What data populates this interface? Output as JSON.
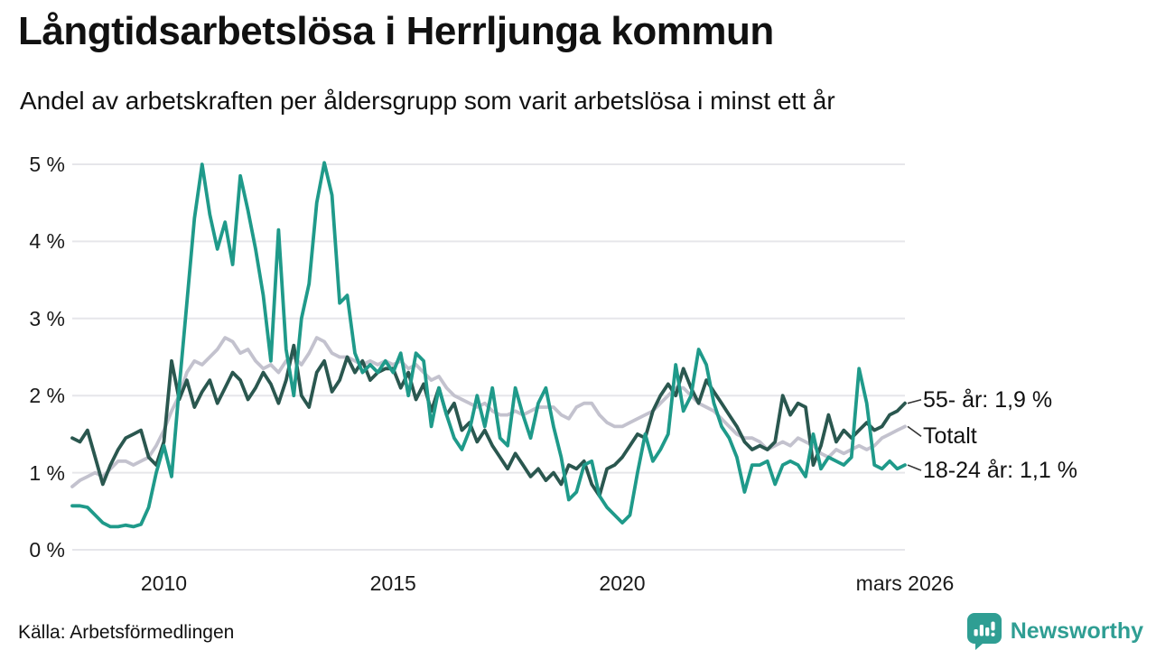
{
  "title": "Långtidsarbetslösa i Herrljunga kommun",
  "subtitle": "Andel av arbetskraften per åldersgrupp som varit arbetslösa i minst ett år",
  "source": "Källa: Arbetsförmedlingen",
  "branding": {
    "name": "Newsworthy",
    "icon": "speech-bubble-bar-chart-icon",
    "color": "#2f9e93"
  },
  "colors": {
    "grid": "#e6e6ea",
    "text": "#111111",
    "leader_line": "#333333"
  },
  "chart_data": {
    "type": "line",
    "title": "Långtidsarbetslösa i Herrljunga kommun",
    "xlabel": "",
    "ylabel": "Andel av arbetskraften (%)",
    "ylim": [
      0,
      5
    ],
    "grid": "horizontal",
    "legend_position": "right-end-labels",
    "x_start": 2008.0,
    "x_end": 2026.1667,
    "x_step_months": 2,
    "yticks": [
      {
        "v": 0,
        "label": "0 %"
      },
      {
        "v": 1,
        "label": "1 %"
      },
      {
        "v": 2,
        "label": "2 %"
      },
      {
        "v": 3,
        "label": "3 %"
      },
      {
        "v": 4,
        "label": "4 %"
      },
      {
        "v": 5,
        "label": "5 %"
      }
    ],
    "xticks": [
      {
        "v": 2010,
        "label": "2010"
      },
      {
        "v": 2015,
        "label": "2015"
      },
      {
        "v": 2020,
        "label": "2020"
      },
      {
        "v": 2026.1667,
        "label": "mars 2026"
      }
    ],
    "series": [
      {
        "name": "55- år",
        "end_label": "55- år: 1,9 %",
        "last_value": 1.9,
        "color": "#2a574f",
        "values": [
          1.45,
          1.4,
          1.55,
          1.2,
          0.85,
          1.1,
          1.3,
          1.45,
          1.5,
          1.55,
          1.2,
          1.1,
          1.4,
          2.45,
          1.95,
          2.2,
          1.85,
          2.05,
          2.2,
          1.9,
          2.1,
          2.3,
          2.2,
          1.95,
          2.1,
          2.3,
          2.15,
          1.9,
          2.2,
          2.65,
          2.0,
          1.85,
          2.3,
          2.45,
          2.05,
          2.2,
          2.5,
          2.3,
          2.45,
          2.2,
          2.3,
          2.35,
          2.35,
          2.1,
          2.3,
          1.95,
          2.15,
          1.8,
          2.1,
          1.75,
          1.9,
          1.55,
          1.65,
          1.4,
          1.55,
          1.35,
          1.2,
          1.05,
          1.25,
          1.1,
          0.95,
          1.05,
          0.9,
          1.0,
          0.85,
          1.1,
          1.05,
          1.15,
          0.85,
          0.7,
          1.05,
          1.1,
          1.2,
          1.35,
          1.5,
          1.45,
          1.8,
          2.0,
          2.15,
          2.0,
          2.35,
          2.1,
          1.9,
          2.2,
          2.05,
          1.9,
          1.75,
          1.6,
          1.4,
          1.3,
          1.35,
          1.3,
          1.4,
          2.0,
          1.75,
          1.9,
          1.85,
          1.1,
          1.35,
          1.75,
          1.4,
          1.55,
          1.45,
          1.55,
          1.65,
          1.55,
          1.6,
          1.75,
          1.8,
          1.9
        ]
      },
      {
        "name": "Totalt",
        "end_label": "Totalt",
        "last_value": 1.6,
        "color": "#c3c2ce",
        "values": [
          0.82,
          0.9,
          0.95,
          1.0,
          0.95,
          1.05,
          1.15,
          1.15,
          1.1,
          1.15,
          1.2,
          1.35,
          1.55,
          1.8,
          2.0,
          2.3,
          2.45,
          2.4,
          2.5,
          2.6,
          2.75,
          2.7,
          2.55,
          2.6,
          2.45,
          2.35,
          2.4,
          2.3,
          2.45,
          2.5,
          2.4,
          2.55,
          2.75,
          2.7,
          2.55,
          2.5,
          2.5,
          2.45,
          2.4,
          2.45,
          2.4,
          2.45,
          2.4,
          2.45,
          2.35,
          2.4,
          2.3,
          2.2,
          2.25,
          2.1,
          2.0,
          1.95,
          1.9,
          1.85,
          1.9,
          1.8,
          1.75,
          1.75,
          1.8,
          1.75,
          1.8,
          1.85,
          1.85,
          1.85,
          1.75,
          1.7,
          1.85,
          1.9,
          1.9,
          1.75,
          1.65,
          1.6,
          1.6,
          1.65,
          1.7,
          1.75,
          1.8,
          1.9,
          2.0,
          2.1,
          2.1,
          2.0,
          1.9,
          1.85,
          1.8,
          1.7,
          1.6,
          1.5,
          1.45,
          1.45,
          1.4,
          1.3,
          1.35,
          1.4,
          1.35,
          1.45,
          1.4,
          1.35,
          1.25,
          1.2,
          1.3,
          1.25,
          1.3,
          1.35,
          1.3,
          1.35,
          1.45,
          1.5,
          1.55,
          1.6
        ]
      },
      {
        "name": "18-24 år",
        "end_label": "18-24 år: 1,1 %",
        "last_value": 1.1,
        "color": "#1f9a8a",
        "values": [
          0.57,
          0.57,
          0.55,
          0.45,
          0.35,
          0.3,
          0.3,
          0.32,
          0.3,
          0.33,
          0.55,
          1.0,
          1.35,
          0.95,
          2.1,
          3.2,
          4.3,
          5.0,
          4.35,
          3.9,
          4.25,
          3.7,
          4.85,
          4.4,
          3.9,
          3.3,
          2.45,
          4.15,
          2.6,
          2.0,
          3.0,
          3.45,
          4.5,
          5.02,
          4.6,
          3.2,
          3.3,
          2.55,
          2.3,
          2.4,
          2.3,
          2.45,
          2.3,
          2.55,
          2.0,
          2.55,
          2.45,
          1.6,
          2.1,
          1.75,
          1.45,
          1.3,
          1.55,
          2.0,
          1.6,
          2.1,
          1.45,
          1.35,
          2.1,
          1.75,
          1.45,
          1.9,
          2.1,
          1.6,
          1.2,
          0.65,
          0.75,
          1.1,
          1.15,
          0.7,
          0.55,
          0.45,
          0.35,
          0.45,
          1.0,
          1.5,
          1.15,
          1.3,
          1.5,
          2.4,
          1.8,
          2.0,
          2.6,
          2.4,
          1.9,
          1.6,
          1.45,
          1.2,
          0.75,
          1.1,
          1.1,
          1.15,
          0.85,
          1.1,
          1.15,
          1.1,
          0.95,
          1.5,
          1.05,
          1.2,
          1.15,
          1.1,
          1.2,
          2.35,
          1.9,
          1.1,
          1.05,
          1.15,
          1.05,
          1.1
        ]
      }
    ]
  }
}
